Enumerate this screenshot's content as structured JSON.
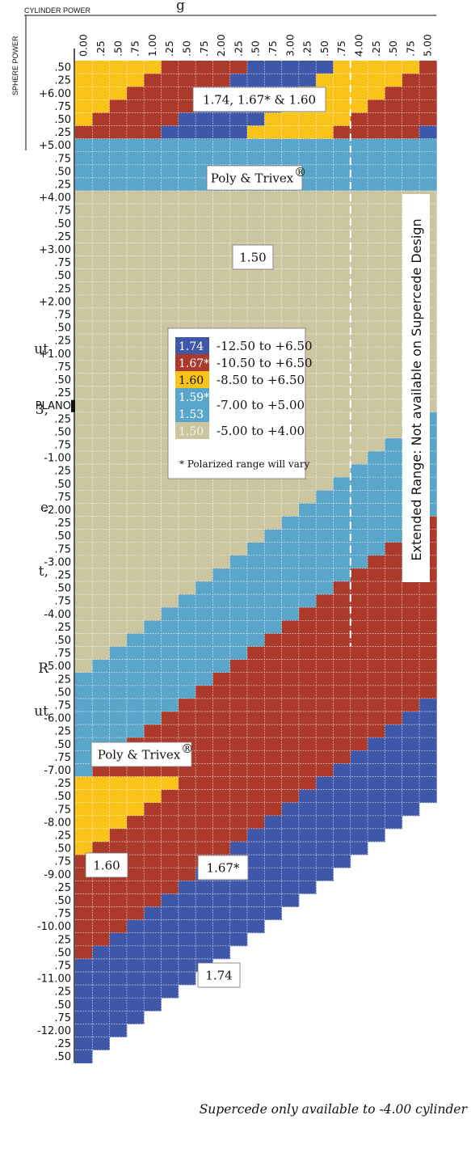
{
  "chart_data": {
    "type": "heatmap",
    "title_fragment": "g",
    "x_axis_title": "CYLINDER POWER",
    "y_axis_title": "SPHERE POWER",
    "x_tick_labels": [
      "0.00",
      ".25",
      ".50",
      ".75",
      "1.00",
      ".25",
      ".50",
      ".75",
      "2.00",
      ".25",
      ".50",
      ".75",
      "3.00",
      ".25",
      ".50",
      ".75",
      "4.00",
      ".25",
      ".50",
      ".75",
      "5.00"
    ],
    "y_tick_labels": [
      ".50",
      ".25",
      "+6.00",
      ".75",
      ".50",
      ".25",
      "+5.00",
      ".75",
      ".50",
      ".25",
      "+4.00",
      ".75",
      ".50",
      ".25",
      "+3.00",
      ".75",
      ".50",
      ".25",
      "+2.00",
      ".75",
      ".50",
      ".25",
      "+1.00",
      ".75",
      ".50",
      ".25",
      "PLANO",
      ".25",
      ".50",
      ".75",
      "-1.00",
      ".25",
      ".50",
      ".75",
      "-2.00",
      ".25",
      ".50",
      ".75",
      "-3.00",
      ".25",
      ".50",
      ".75",
      "-4.00",
      ".25",
      ".50",
      ".75",
      "-5.00",
      ".25",
      ".50",
      ".75",
      "-6.00",
      ".25",
      ".50",
      ".75",
      "-7.00",
      ".25",
      ".50",
      ".75",
      "-8.00",
      ".25",
      ".50",
      ".75",
      "-9.00",
      ".25",
      ".50",
      ".75",
      "-10.00",
      ".25",
      ".50",
      ".75",
      "-11.00",
      ".25",
      ".50",
      ".75",
      "-12.00",
      ".25",
      ".50"
    ],
    "cylinder_range": [
      0,
      5
    ],
    "sphere_range": [
      -12.5,
      6.5
    ],
    "step": 0.25,
    "colors": {
      "1.74": "#3f57a8",
      "1.67": "#ab3a2b",
      "1.60": "#f9c31a",
      "1.59/1.53": "#5aa6cb",
      "1.50": "#cbc5a0"
    },
    "rules": [
      {
        "material": "1.74",
        "sphere_max": 6.5,
        "sphere_min": -12.5
      },
      {
        "material": "1.67",
        "sphere_max": 6.5,
        "sphere_min": -10.5
      },
      {
        "material": "1.60",
        "sphere_max": 6.5,
        "sphere_min": -8.5
      },
      {
        "material": "1.59/1.53",
        "sphere_max": 5.0,
        "sphere_min": -7.0
      },
      {
        "material": "1.50",
        "sphere_max": 4.0,
        "sphere_min": -5.0
      }
    ],
    "diagonal_band_materials": [
      "1.74",
      "1.67",
      "1.60"
    ],
    "extended_range_from_cylinder": 4.0,
    "labels": {
      "top_band": "1.74, 1.67* & 1.60",
      "poly_top": "Poly & Trivex",
      "poly_bottom": "Poly & Trivex",
      "center_150": "1.50",
      "low_160": "1.60",
      "low_167": "1.67*",
      "low_174": "1.74",
      "trademark": "®"
    },
    "legend": [
      {
        "swatch": "1.74",
        "color": "#3f57a8",
        "range": "-12.50 to +6.50"
      },
      {
        "swatch": "1.67*",
        "color": "#ab3a2b",
        "range": "-10.50 to +6.50"
      },
      {
        "swatch": "1.60",
        "color": "#f9c31a",
        "range": "-8.50 to +6.50"
      },
      {
        "swatch": "1.59*",
        "color": "#5aa6cb",
        "range": "-7.00 to +5.00"
      },
      {
        "swatch": "1.53",
        "color": "#5aa6cb",
        "range": ""
      },
      {
        "swatch": "1.50",
        "color": "#cbc5a0",
        "range": "-5.00 to +4.00"
      }
    ],
    "legend_note": "* Polarized range will vary",
    "extended_note": "Extended Range: Not available on Supercede Design",
    "footnote": "Supercede only available to -4.00 cylinder"
  },
  "side_fragments": [
    "ut",
    "3,",
    "e",
    "t,",
    "R",
    "ut"
  ]
}
